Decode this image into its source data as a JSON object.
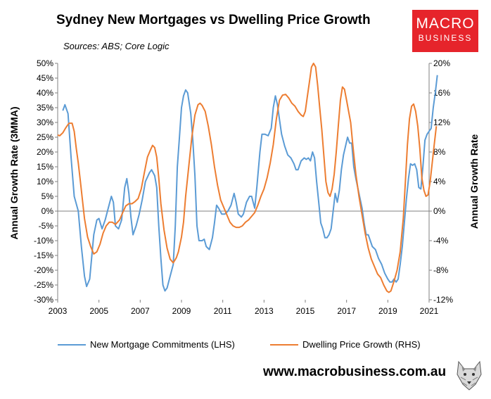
{
  "chart_data": {
    "type": "line",
    "title": "Sydney New Mortgages vs Dwelling Price Growth",
    "subtitle": "Sources: ABS; Core Logic",
    "xlabel": "",
    "ylabel_left": "Annual Growth Rate (3MMA)",
    "ylabel_right": "Annual Growth Rate",
    "xlim": [
      2003,
      2021
    ],
    "x_ticks": [
      "2003",
      "2005",
      "2007",
      "2009",
      "2011",
      "2013",
      "2015",
      "2017",
      "2019",
      "2021"
    ],
    "ylim_left": [
      -30,
      50
    ],
    "y_ticks_left": [
      "50%",
      "45%",
      "40%",
      "35%",
      "30%",
      "25%",
      "20%",
      "15%",
      "10%",
      "5%",
      "0%",
      "-5%",
      "-10%",
      "-15%",
      "-20%",
      "-25%",
      "-30%"
    ],
    "ylim_right": [
      -12,
      20
    ],
    "y_ticks_right": [
      "20%",
      "16%",
      "12%",
      "8%",
      "4%",
      "0%",
      "-4%",
      "-8%",
      "-12%"
    ],
    "series": [
      {
        "name": "New Mortgage Commitments (LHS)",
        "axis": "left",
        "color": "#5b9bd5",
        "points": [
          [
            2003.25,
            34
          ],
          [
            2003.35,
            36
          ],
          [
            2003.5,
            33
          ],
          [
            2003.65,
            18
          ],
          [
            2003.8,
            5
          ],
          [
            2004.0,
            0
          ],
          [
            2004.15,
            -12
          ],
          [
            2004.3,
            -22
          ],
          [
            2004.4,
            -25.5
          ],
          [
            2004.55,
            -23
          ],
          [
            2004.75,
            -8
          ],
          [
            2004.9,
            -3
          ],
          [
            2005.0,
            -2.5
          ],
          [
            2005.15,
            -6
          ],
          [
            2005.3,
            -3
          ],
          [
            2005.45,
            1
          ],
          [
            2005.6,
            5
          ],
          [
            2005.7,
            3
          ],
          [
            2005.8,
            -5
          ],
          [
            2005.95,
            -6
          ],
          [
            2006.1,
            -3
          ],
          [
            2006.25,
            8
          ],
          [
            2006.35,
            11
          ],
          [
            2006.45,
            6
          ],
          [
            2006.55,
            -2
          ],
          [
            2006.65,
            -8
          ],
          [
            2006.8,
            -5
          ],
          [
            2006.95,
            -1
          ],
          [
            2007.1,
            4
          ],
          [
            2007.25,
            10
          ],
          [
            2007.45,
            13
          ],
          [
            2007.55,
            14
          ],
          [
            2007.7,
            12
          ],
          [
            2007.8,
            8
          ],
          [
            2007.9,
            -5
          ],
          [
            2008.0,
            -16
          ],
          [
            2008.1,
            -25
          ],
          [
            2008.2,
            -27
          ],
          [
            2008.3,
            -26
          ],
          [
            2008.45,
            -22
          ],
          [
            2008.6,
            -18
          ],
          [
            2008.7,
            -5
          ],
          [
            2008.8,
            15
          ],
          [
            2008.9,
            25
          ],
          [
            2009.0,
            35
          ],
          [
            2009.1,
            39
          ],
          [
            2009.2,
            41
          ],
          [
            2009.3,
            40
          ],
          [
            2009.45,
            33
          ],
          [
            2009.55,
            24
          ],
          [
            2009.65,
            12
          ],
          [
            2009.75,
            -5
          ],
          [
            2009.85,
            -10
          ],
          [
            2010.0,
            -10
          ],
          [
            2010.1,
            -9.5
          ],
          [
            2010.2,
            -12
          ],
          [
            2010.35,
            -13
          ],
          [
            2010.5,
            -9
          ],
          [
            2010.6,
            -4
          ],
          [
            2010.7,
            2
          ],
          [
            2010.8,
            1
          ],
          [
            2010.95,
            -1
          ],
          [
            2011.1,
            -1
          ],
          [
            2011.25,
            0
          ],
          [
            2011.4,
            2
          ],
          [
            2011.55,
            6
          ],
          [
            2011.65,
            3
          ],
          [
            2011.75,
            -1
          ],
          [
            2011.9,
            -2
          ],
          [
            2012.0,
            -1
          ],
          [
            2012.15,
            3
          ],
          [
            2012.3,
            5
          ],
          [
            2012.4,
            5
          ],
          [
            2012.55,
            1
          ],
          [
            2012.65,
            8
          ],
          [
            2012.8,
            20
          ],
          [
            2012.9,
            26
          ],
          [
            2013.05,
            26
          ],
          [
            2013.2,
            25.5
          ],
          [
            2013.35,
            28
          ],
          [
            2013.45,
            35
          ],
          [
            2013.55,
            39
          ],
          [
            2013.65,
            36
          ],
          [
            2013.75,
            31
          ],
          [
            2013.85,
            26
          ],
          [
            2014.0,
            22
          ],
          [
            2014.15,
            19
          ],
          [
            2014.3,
            18
          ],
          [
            2014.45,
            16
          ],
          [
            2014.55,
            14
          ],
          [
            2014.65,
            14
          ],
          [
            2014.8,
            17
          ],
          [
            2014.95,
            18
          ],
          [
            2015.05,
            17.5
          ],
          [
            2015.15,
            18
          ],
          [
            2015.25,
            17
          ],
          [
            2015.35,
            20
          ],
          [
            2015.45,
            18
          ],
          [
            2015.55,
            10
          ],
          [
            2015.65,
            3
          ],
          [
            2015.75,
            -4
          ],
          [
            2015.85,
            -6
          ],
          [
            2015.95,
            -9
          ],
          [
            2016.05,
            -9
          ],
          [
            2016.15,
            -8
          ],
          [
            2016.25,
            -6
          ],
          [
            2016.35,
            0
          ],
          [
            2016.45,
            6
          ],
          [
            2016.55,
            3
          ],
          [
            2016.65,
            7
          ],
          [
            2016.75,
            14
          ],
          [
            2016.85,
            19
          ],
          [
            2016.95,
            22
          ],
          [
            2017.05,
            25
          ],
          [
            2017.15,
            23
          ],
          [
            2017.25,
            23
          ],
          [
            2017.35,
            15
          ],
          [
            2017.45,
            11
          ],
          [
            2017.6,
            6
          ],
          [
            2017.75,
            1
          ],
          [
            2017.85,
            -4
          ],
          [
            2017.95,
            -8
          ],
          [
            2018.05,
            -8
          ],
          [
            2018.15,
            -10
          ],
          [
            2018.25,
            -12
          ],
          [
            2018.4,
            -13
          ],
          [
            2018.55,
            -16
          ],
          [
            2018.7,
            -18
          ],
          [
            2018.85,
            -21
          ],
          [
            2019.0,
            -23
          ],
          [
            2019.1,
            -24
          ],
          [
            2019.2,
            -24
          ],
          [
            2019.3,
            -23
          ],
          [
            2019.4,
            -24
          ],
          [
            2019.5,
            -23
          ],
          [
            2019.6,
            -18
          ],
          [
            2019.7,
            -12
          ],
          [
            2019.8,
            -4
          ],
          [
            2019.9,
            4
          ],
          [
            2020.0,
            11
          ],
          [
            2020.1,
            16
          ],
          [
            2020.2,
            15.5
          ],
          [
            2020.3,
            16
          ],
          [
            2020.4,
            14
          ],
          [
            2020.5,
            8
          ],
          [
            2020.6,
            7.5
          ],
          [
            2020.7,
            15
          ],
          [
            2020.8,
            24
          ],
          [
            2020.9,
            26
          ],
          [
            2021.0,
            27
          ],
          [
            2021.1,
            28
          ],
          [
            2021.2,
            35
          ],
          [
            2021.3,
            40
          ],
          [
            2021.4,
            46
          ]
        ]
      },
      {
        "name": "Dwelling Price Growth (RHS)",
        "axis": "right",
        "color": "#ed7d31",
        "points": [
          [
            2003.0,
            10.3
          ],
          [
            2003.1,
            10.2
          ],
          [
            2003.25,
            10.6
          ],
          [
            2003.4,
            11.3
          ],
          [
            2003.55,
            11.9
          ],
          [
            2003.7,
            11.9
          ],
          [
            2003.8,
            10.8
          ],
          [
            2003.9,
            8.5
          ],
          [
            2004.0,
            6.5
          ],
          [
            2004.1,
            4.0
          ],
          [
            2004.2,
            1.5
          ],
          [
            2004.3,
            -1.0
          ],
          [
            2004.45,
            -3.5
          ],
          [
            2004.6,
            -4.8
          ],
          [
            2004.75,
            -5.8
          ],
          [
            2004.9,
            -5.5
          ],
          [
            2005.05,
            -4.5
          ],
          [
            2005.2,
            -3.0
          ],
          [
            2005.35,
            -2.0
          ],
          [
            2005.5,
            -1.5
          ],
          [
            2005.65,
            -1.5
          ],
          [
            2005.8,
            -1.8
          ],
          [
            2006.0,
            -1.2
          ],
          [
            2006.15,
            -0.2
          ],
          [
            2006.3,
            0.7
          ],
          [
            2006.45,
            1.0
          ],
          [
            2006.6,
            1.0
          ],
          [
            2006.75,
            1.3
          ],
          [
            2006.9,
            1.7
          ],
          [
            2007.05,
            3.0
          ],
          [
            2007.2,
            5.2
          ],
          [
            2007.35,
            7.3
          ],
          [
            2007.5,
            8.3
          ],
          [
            2007.6,
            8.9
          ],
          [
            2007.7,
            8.6
          ],
          [
            2007.8,
            7.3
          ],
          [
            2007.9,
            4.5
          ],
          [
            2008.0,
            1.0
          ],
          [
            2008.15,
            -2.5
          ],
          [
            2008.3,
            -5.0
          ],
          [
            2008.45,
            -6.5
          ],
          [
            2008.6,
            -7.0
          ],
          [
            2008.75,
            -6.3
          ],
          [
            2008.85,
            -5.5
          ],
          [
            2009.0,
            -3.5
          ],
          [
            2009.1,
            -1.5
          ],
          [
            2009.2,
            2.0
          ],
          [
            2009.35,
            6.0
          ],
          [
            2009.5,
            10.0
          ],
          [
            2009.65,
            13.0
          ],
          [
            2009.8,
            14.4
          ],
          [
            2009.9,
            14.6
          ],
          [
            2010.0,
            14.3
          ],
          [
            2010.15,
            13.5
          ],
          [
            2010.3,
            11.5
          ],
          [
            2010.45,
            9.0
          ],
          [
            2010.6,
            6.0
          ],
          [
            2010.75,
            3.5
          ],
          [
            2010.9,
            1.5
          ],
          [
            2011.05,
            0.5
          ],
          [
            2011.2,
            -0.5
          ],
          [
            2011.35,
            -1.5
          ],
          [
            2011.5,
            -2.0
          ],
          [
            2011.65,
            -2.2
          ],
          [
            2011.8,
            -2.2
          ],
          [
            2011.95,
            -2.0
          ],
          [
            2012.1,
            -1.5
          ],
          [
            2012.25,
            -1.2
          ],
          [
            2012.4,
            -0.7
          ],
          [
            2012.55,
            -0.2
          ],
          [
            2012.7,
            0.8
          ],
          [
            2012.85,
            2.0
          ],
          [
            2013.0,
            3.0
          ],
          [
            2013.15,
            4.5
          ],
          [
            2013.3,
            6.5
          ],
          [
            2013.45,
            9.0
          ],
          [
            2013.6,
            12.5
          ],
          [
            2013.75,
            15.0
          ],
          [
            2013.9,
            15.7
          ],
          [
            2014.05,
            15.8
          ],
          [
            2014.2,
            15.3
          ],
          [
            2014.35,
            14.6
          ],
          [
            2014.5,
            14.2
          ],
          [
            2014.65,
            13.5
          ],
          [
            2014.8,
            13.0
          ],
          [
            2014.9,
            12.8
          ],
          [
            2015.0,
            13.5
          ],
          [
            2015.1,
            15.5
          ],
          [
            2015.2,
            17.5
          ],
          [
            2015.3,
            19.5
          ],
          [
            2015.4,
            20.0
          ],
          [
            2015.5,
            19.5
          ],
          [
            2015.6,
            17.0
          ],
          [
            2015.7,
            14.0
          ],
          [
            2015.8,
            11.0
          ],
          [
            2015.9,
            7.5
          ],
          [
            2016.0,
            4.0
          ],
          [
            2016.1,
            2.5
          ],
          [
            2016.2,
            2.0
          ],
          [
            2016.3,
            3.0
          ],
          [
            2016.4,
            5.0
          ],
          [
            2016.5,
            8.0
          ],
          [
            2016.6,
            11.5
          ],
          [
            2016.7,
            15.0
          ],
          [
            2016.8,
            16.8
          ],
          [
            2016.9,
            16.5
          ],
          [
            2017.0,
            15.0
          ],
          [
            2017.1,
            13.5
          ],
          [
            2017.2,
            12.0
          ],
          [
            2017.3,
            9.0
          ],
          [
            2017.45,
            5.0
          ],
          [
            2017.6,
            2.0
          ],
          [
            2017.75,
            -0.5
          ],
          [
            2017.9,
            -3.0
          ],
          [
            2018.05,
            -5.0
          ],
          [
            2018.2,
            -6.5
          ],
          [
            2018.35,
            -7.5
          ],
          [
            2018.5,
            -8.5
          ],
          [
            2018.65,
            -9.0
          ],
          [
            2018.8,
            -10.0
          ],
          [
            2018.95,
            -10.8
          ],
          [
            2019.05,
            -11.0
          ],
          [
            2019.15,
            -10.8
          ],
          [
            2019.3,
            -9.5
          ],
          [
            2019.45,
            -8.0
          ],
          [
            2019.6,
            -5.5
          ],
          [
            2019.75,
            -1.0
          ],
          [
            2019.85,
            4.0
          ],
          [
            2019.95,
            9.0
          ],
          [
            2020.05,
            12.5
          ],
          [
            2020.15,
            14.2
          ],
          [
            2020.25,
            14.5
          ],
          [
            2020.35,
            13.5
          ],
          [
            2020.45,
            11.5
          ],
          [
            2020.55,
            8.5
          ],
          [
            2020.65,
            4.5
          ],
          [
            2020.75,
            2.8
          ],
          [
            2020.85,
            2.0
          ],
          [
            2020.95,
            2.2
          ],
          [
            2021.05,
            4.0
          ],
          [
            2021.15,
            6.5
          ],
          [
            2021.25,
            9.0
          ],
          [
            2021.35,
            11.5
          ]
        ]
      }
    ]
  },
  "logo": {
    "line1": "MACRO",
    "line2": "BUSINESS"
  },
  "footer": {
    "url": "www.macrobusiness.com.au"
  }
}
